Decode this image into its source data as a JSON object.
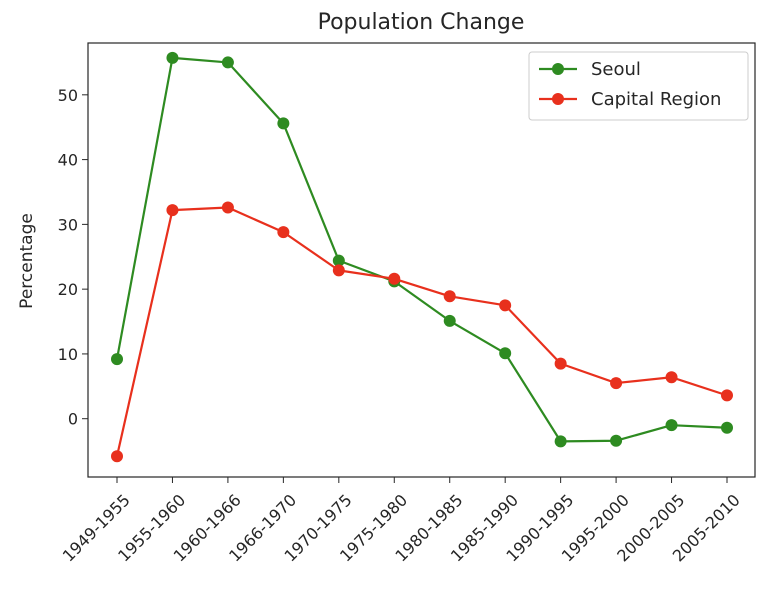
{
  "chart_data": {
    "type": "line",
    "title": "Population Change",
    "xlabel": "",
    "ylabel": "Percentage",
    "categories": [
      "1949-1955",
      "1955-1960",
      "1960-1966",
      "1966-1970",
      "1970-1975",
      "1975-1980",
      "1980-1985",
      "1985-1990",
      "1990-1995",
      "1995-2000",
      "2000-2005",
      "2005-2010"
    ],
    "ylim": [
      -9,
      58
    ],
    "yticks": [
      0,
      10,
      20,
      30,
      40,
      50
    ],
    "grid": false,
    "legend_position": "top-right",
    "series": [
      {
        "name": "Seoul",
        "color": "#2e8b21",
        "values": [
          9.2,
          55.7,
          55.0,
          45.6,
          24.4,
          21.2,
          15.1,
          10.1,
          -3.5,
          -3.4,
          -1.0,
          -1.4
        ]
      },
      {
        "name": "Capital Region",
        "color": "#e8301d",
        "values": [
          -5.8,
          32.2,
          32.6,
          28.8,
          22.9,
          21.6,
          18.9,
          17.5,
          8.5,
          5.5,
          6.4,
          3.6
        ]
      }
    ]
  }
}
